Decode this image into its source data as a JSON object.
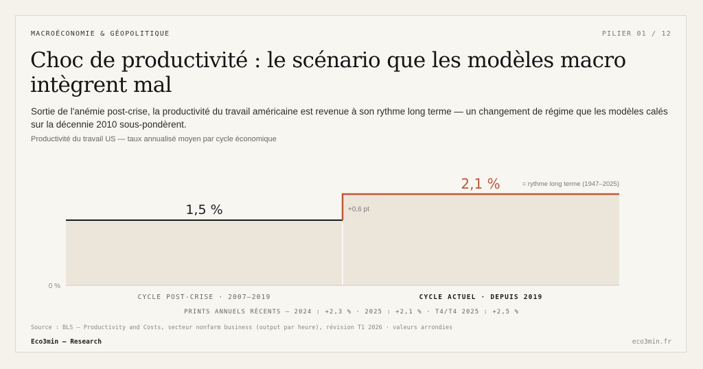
{
  "header": {
    "kicker": "MACROÉCONOMIE & GÉOPOLITIQUE",
    "pillar": "PILIER 01 / 12"
  },
  "title": "Choc de productivité : le scénario que les modèles macro intègrent mal",
  "subtitle": "Sortie de l'anémie post-crise, la productivité du travail américaine est revenue à son rythme long terme — un changement de régime que les modèles calés sur la décennie 2010 sous-pondèrent.",
  "chart_caption": "Productivité du travail US — taux annualisé moyen par cycle économique",
  "chart_data": {
    "type": "area",
    "title": "Productivité du travail US — taux annualisé moyen par cycle économique",
    "xlabel": "",
    "ylabel": "",
    "ylim": [
      0,
      3.0
    ],
    "y_zero_label": "0 %",
    "grid": false,
    "categories": [
      "CYCLE POST-CRISE · 2007–2019",
      "CYCLE ACTUEL · DEPUIS 2019"
    ],
    "values": [
      1.5,
      2.1
    ],
    "value_labels": [
      "1,5 %",
      "2,1 %"
    ],
    "annotations": {
      "step_delta": "+0,6 pt",
      "long_term_note": "= rythme long terme (1947–2025)"
    },
    "recent_prints": "PRINTS ANNUELS RÉCENTS — 2024 : +2,3 % · 2025 : +2,1 % · T4/T4 2025 : +2,5 %"
  },
  "footer": {
    "source": "Source : BLS — Productivity and Costs, secteur nonfarm business (output par heure), révision T1 2026 · valeurs arrondies",
    "brand": "Eco3min — Research",
    "url": "eco3min.fr"
  },
  "colors": {
    "accent": "#c0553a",
    "fill": "#ece6da",
    "ink": "#1a1a1a"
  }
}
